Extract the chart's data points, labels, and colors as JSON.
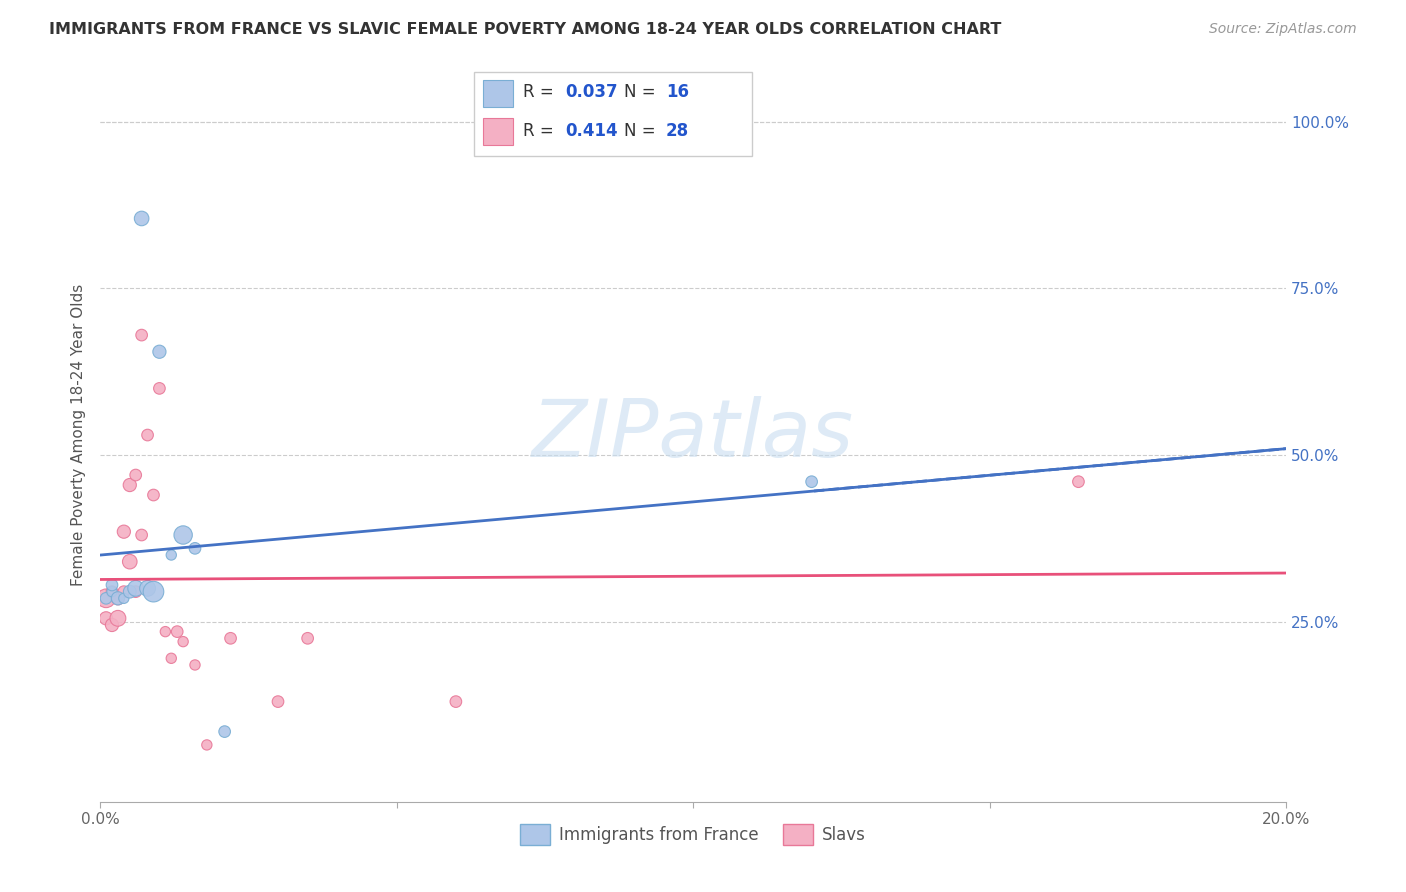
{
  "title": "IMMIGRANTS FROM FRANCE VS SLAVIC FEMALE POVERTY AMONG 18-24 YEAR OLDS CORRELATION CHART",
  "source": "Source: ZipAtlas.com",
  "ylabel": "Female Poverty Among 18-24 Year Olds",
  "xlim": [
    0.0,
    0.2
  ],
  "ylim": [
    -0.02,
    1.08
  ],
  "france_R": "0.037",
  "france_N": "16",
  "slavic_R": "0.414",
  "slavic_N": "28",
  "france_color": "#aec6e8",
  "france_edge_color": "#7aaed4",
  "slavic_color": "#f4b0c4",
  "slavic_edge_color": "#e87898",
  "trend_france_color": "#4472c4",
  "trend_slavic_color": "#e8507a",
  "background_color": "#ffffff",
  "grid_color": "#cccccc",
  "watermark_color": "#c8ddf0",
  "legend_text_color": "#333333",
  "legend_val_color": "#2255cc",
  "france_x": [
    0.001,
    0.002,
    0.002,
    0.003,
    0.004,
    0.005,
    0.006,
    0.007,
    0.008,
    0.009,
    0.01,
    0.012,
    0.014,
    0.016,
    0.021,
    0.12
  ],
  "france_y": [
    0.285,
    0.295,
    0.305,
    0.285,
    0.285,
    0.295,
    0.3,
    0.855,
    0.3,
    0.295,
    0.655,
    0.35,
    0.38,
    0.36,
    0.085,
    0.46
  ],
  "france_size": [
    70,
    55,
    70,
    90,
    55,
    85,
    130,
    110,
    130,
    220,
    90,
    55,
    175,
    70,
    70,
    70
  ],
  "slavic_x": [
    0.001,
    0.001,
    0.002,
    0.002,
    0.003,
    0.003,
    0.004,
    0.004,
    0.005,
    0.005,
    0.006,
    0.006,
    0.007,
    0.007,
    0.008,
    0.009,
    0.01,
    0.011,
    0.012,
    0.013,
    0.014,
    0.016,
    0.018,
    0.022,
    0.03,
    0.035,
    0.06,
    0.165
  ],
  "slavic_y": [
    0.285,
    0.255,
    0.295,
    0.245,
    0.285,
    0.255,
    0.295,
    0.385,
    0.455,
    0.34,
    0.47,
    0.295,
    0.38,
    0.68,
    0.53,
    0.44,
    0.6,
    0.235,
    0.195,
    0.235,
    0.22,
    0.185,
    0.065,
    0.225,
    0.13,
    0.225,
    0.13,
    0.46
  ],
  "slavic_size": [
    180,
    90,
    70,
    90,
    90,
    130,
    70,
    90,
    90,
    110,
    70,
    70,
    70,
    70,
    70,
    70,
    70,
    55,
    55,
    70,
    55,
    55,
    55,
    70,
    70,
    70,
    70,
    70
  ]
}
